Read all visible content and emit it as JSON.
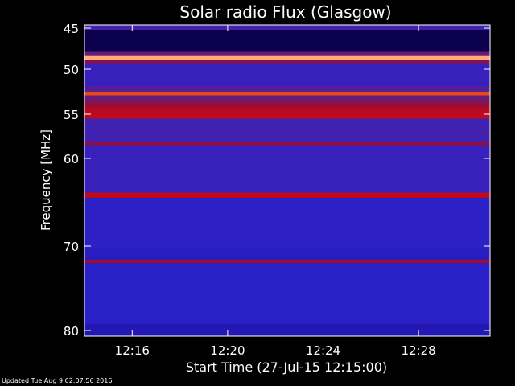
{
  "chart_data": {
    "type": "heatmap",
    "title": "Solar radio Flux (Glasgow)",
    "xlabel": "Start Time (27-Jul-15 12:15:00)",
    "ylabel": "Frequency [MHz]",
    "x_unit": "time",
    "x_range": [
      "12:14",
      "12:31"
    ],
    "x_ticks": [
      "12:16",
      "12:20",
      "12:24",
      "12:28"
    ],
    "y_range": [
      44.5,
      80.5
    ],
    "y_ticks": [
      45,
      50,
      55,
      60,
      70,
      80
    ],
    "y_tick_labels": [
      "45",
      "50",
      "55",
      "60",
      "70",
      "80"
    ],
    "y_scale": "nonlinear",
    "grid": false,
    "colorscale": [
      "#000010",
      "#100070",
      "#2a20c8",
      "#4a22a6",
      "#6a1a70",
      "#a00a30",
      "#d00a14",
      "#ff7a2a",
      "#ffffff"
    ],
    "frequency_bands": [
      {
        "from": 44.6,
        "to": 45.2,
        "level": 0.35
      },
      {
        "from": 45.2,
        "to": 47.9,
        "level": 0.08
      },
      {
        "from": 47.9,
        "to": 48.4,
        "level": 0.5
      },
      {
        "from": 48.4,
        "to": 48.9,
        "level": 0.92
      },
      {
        "from": 48.9,
        "to": 49.3,
        "level": 0.55
      },
      {
        "from": 49.3,
        "to": 51.9,
        "level": 0.3
      },
      {
        "from": 51.9,
        "to": 52.5,
        "level": 0.42
      },
      {
        "from": 52.5,
        "to": 52.9,
        "level": 0.82
      },
      {
        "from": 52.9,
        "to": 53.7,
        "level": 0.5
      },
      {
        "from": 53.7,
        "to": 54.3,
        "level": 0.62
      },
      {
        "from": 54.3,
        "to": 55.5,
        "level": 0.7
      },
      {
        "from": 55.5,
        "to": 58.2,
        "level": 0.34
      },
      {
        "from": 58.2,
        "to": 58.5,
        "level": 0.6
      },
      {
        "from": 58.5,
        "to": 63.9,
        "level": 0.3
      },
      {
        "from": 63.9,
        "to": 64.5,
        "level": 0.7
      },
      {
        "from": 64.5,
        "to": 70.2,
        "level": 0.26
      },
      {
        "from": 70.2,
        "to": 71.6,
        "level": 0.24
      },
      {
        "from": 71.6,
        "to": 72.0,
        "level": 0.62
      },
      {
        "from": 72.0,
        "to": 79.2,
        "level": 0.25
      },
      {
        "from": 79.2,
        "to": 80.5,
        "level": 0.22
      }
    ]
  },
  "footer": {
    "updated_text": "Updated Tue Aug  9 02:07:56 2016"
  }
}
